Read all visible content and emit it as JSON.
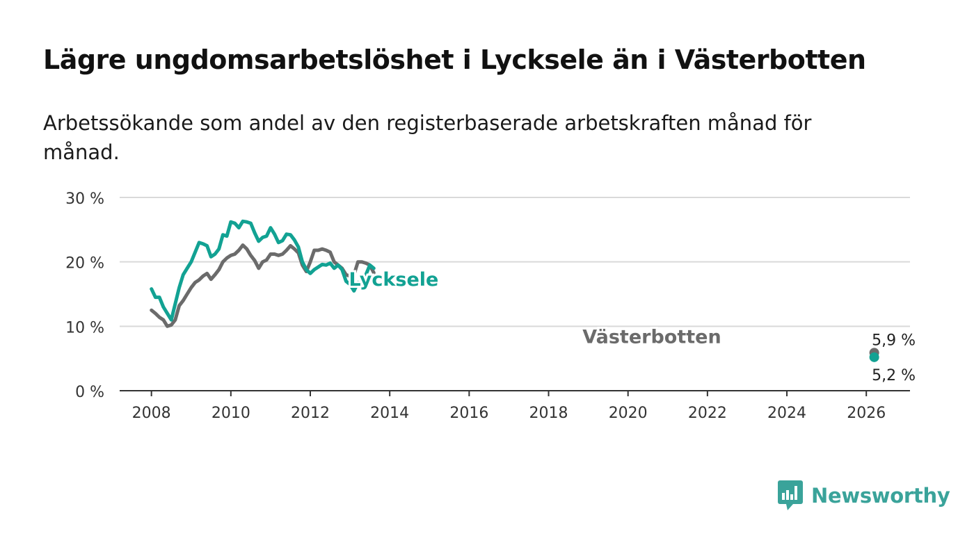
{
  "header": {
    "title": "Lägre ungdomsarbetslöshet i Lycksele än i Västerbotten",
    "subtitle": "Arbetssökande som andel av den registerbaserade arbetskraften månad för månad."
  },
  "brand": {
    "name": "Newsworthy",
    "color": "#3aa39a",
    "icon": "newsworthy-logo-icon"
  },
  "chart_data": {
    "type": "line",
    "title": "Lägre ungdomsarbetslöshet i Lycksele än i Västerbotten",
    "subtitle": "Arbetssökande som andel av den registerbaserade arbetskraften månad för månad.",
    "xlabel": "",
    "ylabel": "",
    "xlim": [
      2007.2,
      2027.1
    ],
    "ylim": [
      0,
      30
    ],
    "x_ticks": [
      2008,
      2010,
      2012,
      2014,
      2016,
      2018,
      2020,
      2022,
      2024,
      2026
    ],
    "y_ticks": [
      0,
      10,
      20,
      30
    ],
    "y_tick_labels": [
      "0 %",
      "10 %",
      "20 %",
      "30 %"
    ],
    "grid": true,
    "legend": "inline labels on lines",
    "series": [
      {
        "name": "Lycksele",
        "color": "#12a293",
        "end_label": "5,2 %",
        "points": [
          [
            2008.0,
            15.8
          ],
          [
            2008.1,
            14.5
          ],
          [
            2008.2,
            14.5
          ],
          [
            2008.3,
            13.0
          ],
          [
            2008.4,
            12.0
          ],
          [
            2008.5,
            11.0
          ],
          [
            2008.6,
            13.5
          ],
          [
            2008.7,
            16.0
          ],
          [
            2008.8,
            18.0
          ],
          [
            2008.9,
            19.0
          ],
          [
            2009.0,
            20.0
          ],
          [
            2009.1,
            21.5
          ],
          [
            2009.2,
            23.0
          ],
          [
            2009.3,
            22.8
          ],
          [
            2009.4,
            22.5
          ],
          [
            2009.5,
            20.8
          ],
          [
            2009.6,
            21.2
          ],
          [
            2009.7,
            22.0
          ],
          [
            2009.8,
            24.2
          ],
          [
            2009.9,
            24.0
          ],
          [
            2010.0,
            26.2
          ],
          [
            2010.1,
            26.0
          ],
          [
            2010.2,
            25.3
          ],
          [
            2010.3,
            26.3
          ],
          [
            2010.4,
            26.2
          ],
          [
            2010.5,
            26.0
          ],
          [
            2010.6,
            24.5
          ],
          [
            2010.7,
            23.2
          ],
          [
            2010.8,
            23.8
          ],
          [
            2010.9,
            24.0
          ],
          [
            2011.0,
            25.3
          ],
          [
            2011.1,
            24.3
          ],
          [
            2011.2,
            23.0
          ],
          [
            2011.3,
            23.3
          ],
          [
            2011.4,
            24.3
          ],
          [
            2011.5,
            24.2
          ],
          [
            2011.6,
            23.4
          ],
          [
            2011.7,
            22.3
          ],
          [
            2011.8,
            20.0
          ],
          [
            2011.9,
            18.8
          ],
          [
            2012.0,
            18.2
          ],
          [
            2012.1,
            18.8
          ],
          [
            2012.2,
            19.2
          ],
          [
            2012.3,
            19.6
          ],
          [
            2012.4,
            19.5
          ],
          [
            2012.5,
            19.8
          ],
          [
            2012.6,
            19.0
          ],
          [
            2012.7,
            19.5
          ],
          [
            2012.8,
            18.8
          ],
          [
            2012.9,
            17.0
          ],
          [
            2013.0,
            16.5
          ],
          [
            2013.1,
            15.5
          ],
          [
            2013.2,
            16.8
          ],
          [
            2013.3,
            16.6
          ],
          [
            2013.4,
            18.0
          ],
          [
            2013.5,
            19.5
          ],
          [
            2013.6,
            19.0
          ]
        ]
      },
      {
        "name": "Västerbotten",
        "color": "#6b6b6b",
        "end_label": "5,9 %",
        "points": [
          [
            2008.0,
            12.5
          ],
          [
            2008.1,
            12.0
          ],
          [
            2008.2,
            11.4
          ],
          [
            2008.3,
            11.0
          ],
          [
            2008.4,
            10.0
          ],
          [
            2008.5,
            10.2
          ],
          [
            2008.6,
            11.0
          ],
          [
            2008.7,
            13.2
          ],
          [
            2008.8,
            14.0
          ],
          [
            2008.9,
            15.0
          ],
          [
            2009.0,
            16.0
          ],
          [
            2009.1,
            16.8
          ],
          [
            2009.2,
            17.2
          ],
          [
            2009.3,
            17.8
          ],
          [
            2009.4,
            18.2
          ],
          [
            2009.5,
            17.3
          ],
          [
            2009.6,
            18.0
          ],
          [
            2009.7,
            18.8
          ],
          [
            2009.8,
            20.0
          ],
          [
            2009.9,
            20.6
          ],
          [
            2010.0,
            21.0
          ],
          [
            2010.1,
            21.2
          ],
          [
            2010.2,
            21.8
          ],
          [
            2010.3,
            22.6
          ],
          [
            2010.4,
            22.0
          ],
          [
            2010.5,
            21.0
          ],
          [
            2010.6,
            20.2
          ],
          [
            2010.7,
            19.0
          ],
          [
            2010.8,
            20.0
          ],
          [
            2010.9,
            20.3
          ],
          [
            2011.0,
            21.2
          ],
          [
            2011.1,
            21.2
          ],
          [
            2011.2,
            21.0
          ],
          [
            2011.3,
            21.2
          ],
          [
            2011.4,
            21.8
          ],
          [
            2011.5,
            22.5
          ],
          [
            2011.6,
            22.0
          ],
          [
            2011.7,
            21.4
          ],
          [
            2011.8,
            19.5
          ],
          [
            2011.9,
            18.5
          ],
          [
            2012.0,
            20.0
          ],
          [
            2012.1,
            21.8
          ],
          [
            2012.2,
            21.8
          ],
          [
            2012.3,
            22.0
          ],
          [
            2012.4,
            21.8
          ],
          [
            2012.5,
            21.5
          ],
          [
            2012.6,
            20.0
          ],
          [
            2012.7,
            19.5
          ],
          [
            2012.8,
            19.0
          ],
          [
            2012.9,
            18.0
          ],
          [
            2013.0,
            17.8
          ],
          [
            2013.1,
            18.0
          ],
          [
            2013.2,
            20.0
          ],
          [
            2013.3,
            20.0
          ],
          [
            2013.4,
            19.8
          ],
          [
            2013.5,
            19.5
          ],
          [
            2013.6,
            18.3
          ]
        ]
      }
    ]
  }
}
